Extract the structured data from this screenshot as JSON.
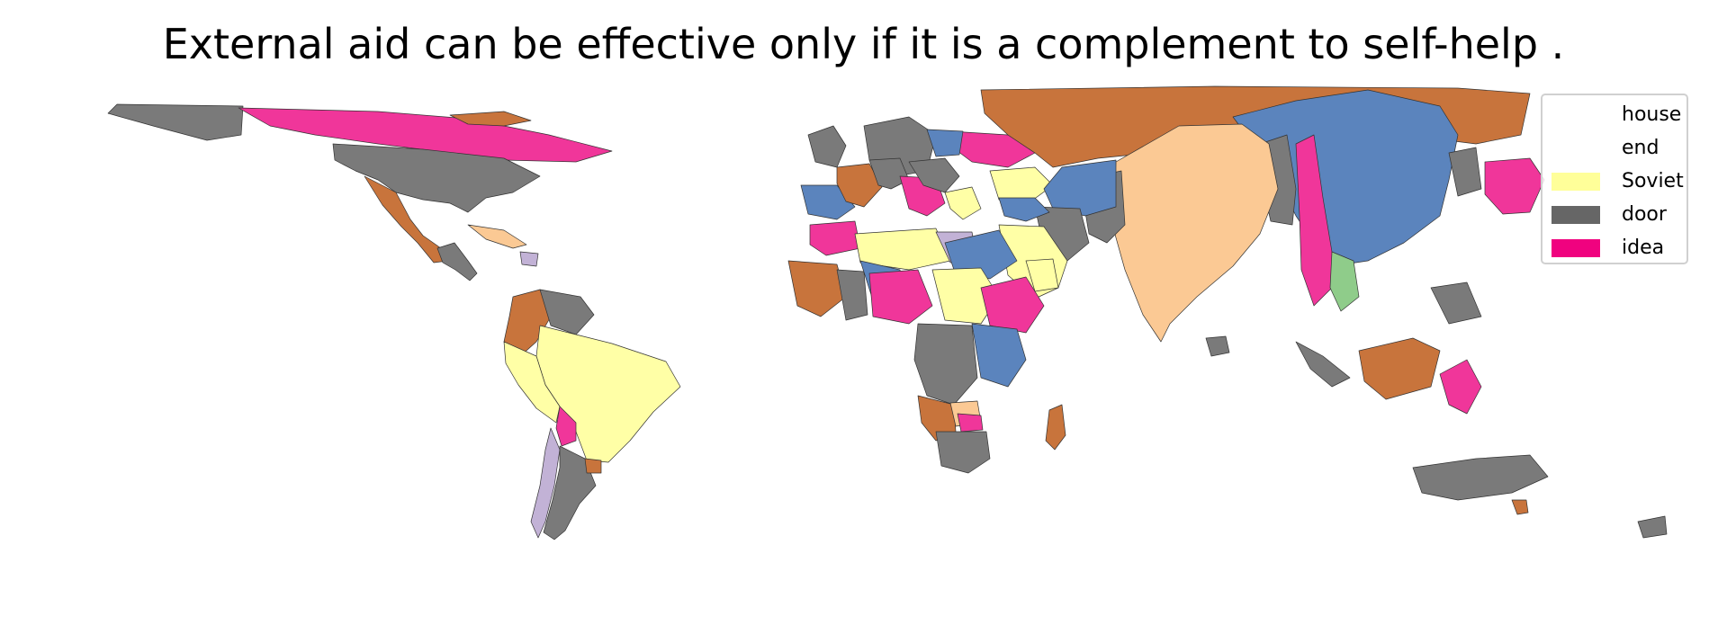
{
  "title": "External aid can be effective only if it is a complement to self-help .",
  "legend": [
    {
      "label": "house",
      "color": "#ffffff"
    },
    {
      "label": "end",
      "color": "#ffffff"
    },
    {
      "label": "Soviet",
      "color": "#ffff99"
    },
    {
      "label": "door",
      "color": "#666666"
    },
    {
      "label": "idea",
      "color": "#f0027f"
    }
  ],
  "palette": {
    "orange": "#c8743c",
    "pink": "#f0369a",
    "gray": "#7a7a7a",
    "blue": "#5b84bd",
    "peach": "#fbc994",
    "yellow": "#ffffa6",
    "lavender": "#c2b2d6",
    "green": "#8fcc8a"
  }
}
